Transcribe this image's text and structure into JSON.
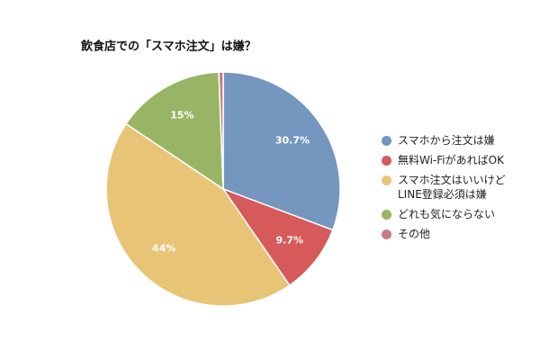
{
  "chart_data": {
    "type": "pie",
    "title": "飲食店での「スマホ注文」は嫌？",
    "categories": [
      "スマホから注文は嫌",
      "無料Wi-FiがあればOK",
      "スマホ注文はいいけど\nLINE登録必須は嫌",
      "どれも気にならない",
      "その他"
    ],
    "values": [
      30.7,
      9.7,
      44,
      15,
      0.6
    ],
    "value_labels": [
      "30.7%",
      "9.7%",
      "44%",
      "15%",
      null
    ],
    "colors": [
      "#7596bf",
      "#d75a5a",
      "#e8c477",
      "#97b564",
      "#c97b84"
    ],
    "legend": "right"
  }
}
